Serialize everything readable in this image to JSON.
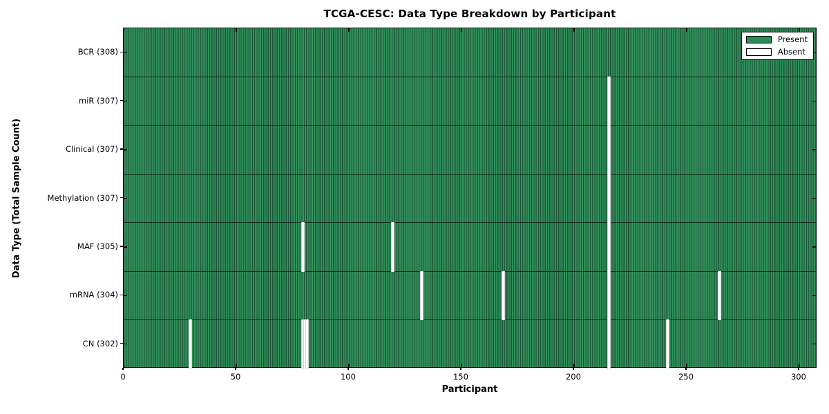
{
  "chart_data": {
    "type": "heatmap",
    "title": "TCGA-CESC: Data Type Breakdown by Participant",
    "xlabel": "Participant",
    "ylabel": "Data Type (Total Sample Count)",
    "x_ticks": [
      0,
      50,
      100,
      150,
      200,
      250,
      300
    ],
    "x_range": [
      0,
      308
    ],
    "n_participants": 308,
    "grid": false,
    "legend_position": "upper right",
    "legend": [
      {
        "label": "Present",
        "color": "#2E8B57"
      },
      {
        "label": "Absent",
        "color": "#FFFFFF"
      }
    ],
    "colors": {
      "present": "#2E8B57",
      "absent": "#FFFFFF",
      "bar_edge": "#1C5737",
      "frame": "#000000"
    },
    "rows": [
      {
        "label": "BCR (308)",
        "name": "BCR",
        "total": 308,
        "absent_participants": []
      },
      {
        "label": "miR (307)",
        "name": "miR",
        "total": 307,
        "absent_participants": [
          215
        ]
      },
      {
        "label": "Clinical (307)",
        "name": "Clinical",
        "total": 307,
        "absent_participants": [
          215
        ]
      },
      {
        "label": "Methylation (307)",
        "name": "Methylation",
        "total": 307,
        "absent_participants": [
          215
        ]
      },
      {
        "label": "MAF (305)",
        "name": "MAF",
        "total": 305,
        "absent_participants": [
          79,
          119,
          215
        ]
      },
      {
        "label": "mRNA (304)",
        "name": "mRNA",
        "total": 304,
        "absent_participants": [
          132,
          168,
          215,
          264
        ]
      },
      {
        "label": "CN (302)",
        "name": "CN",
        "total": 302,
        "absent_participants": [
          29,
          79,
          80,
          81,
          215,
          241
        ]
      }
    ]
  }
}
